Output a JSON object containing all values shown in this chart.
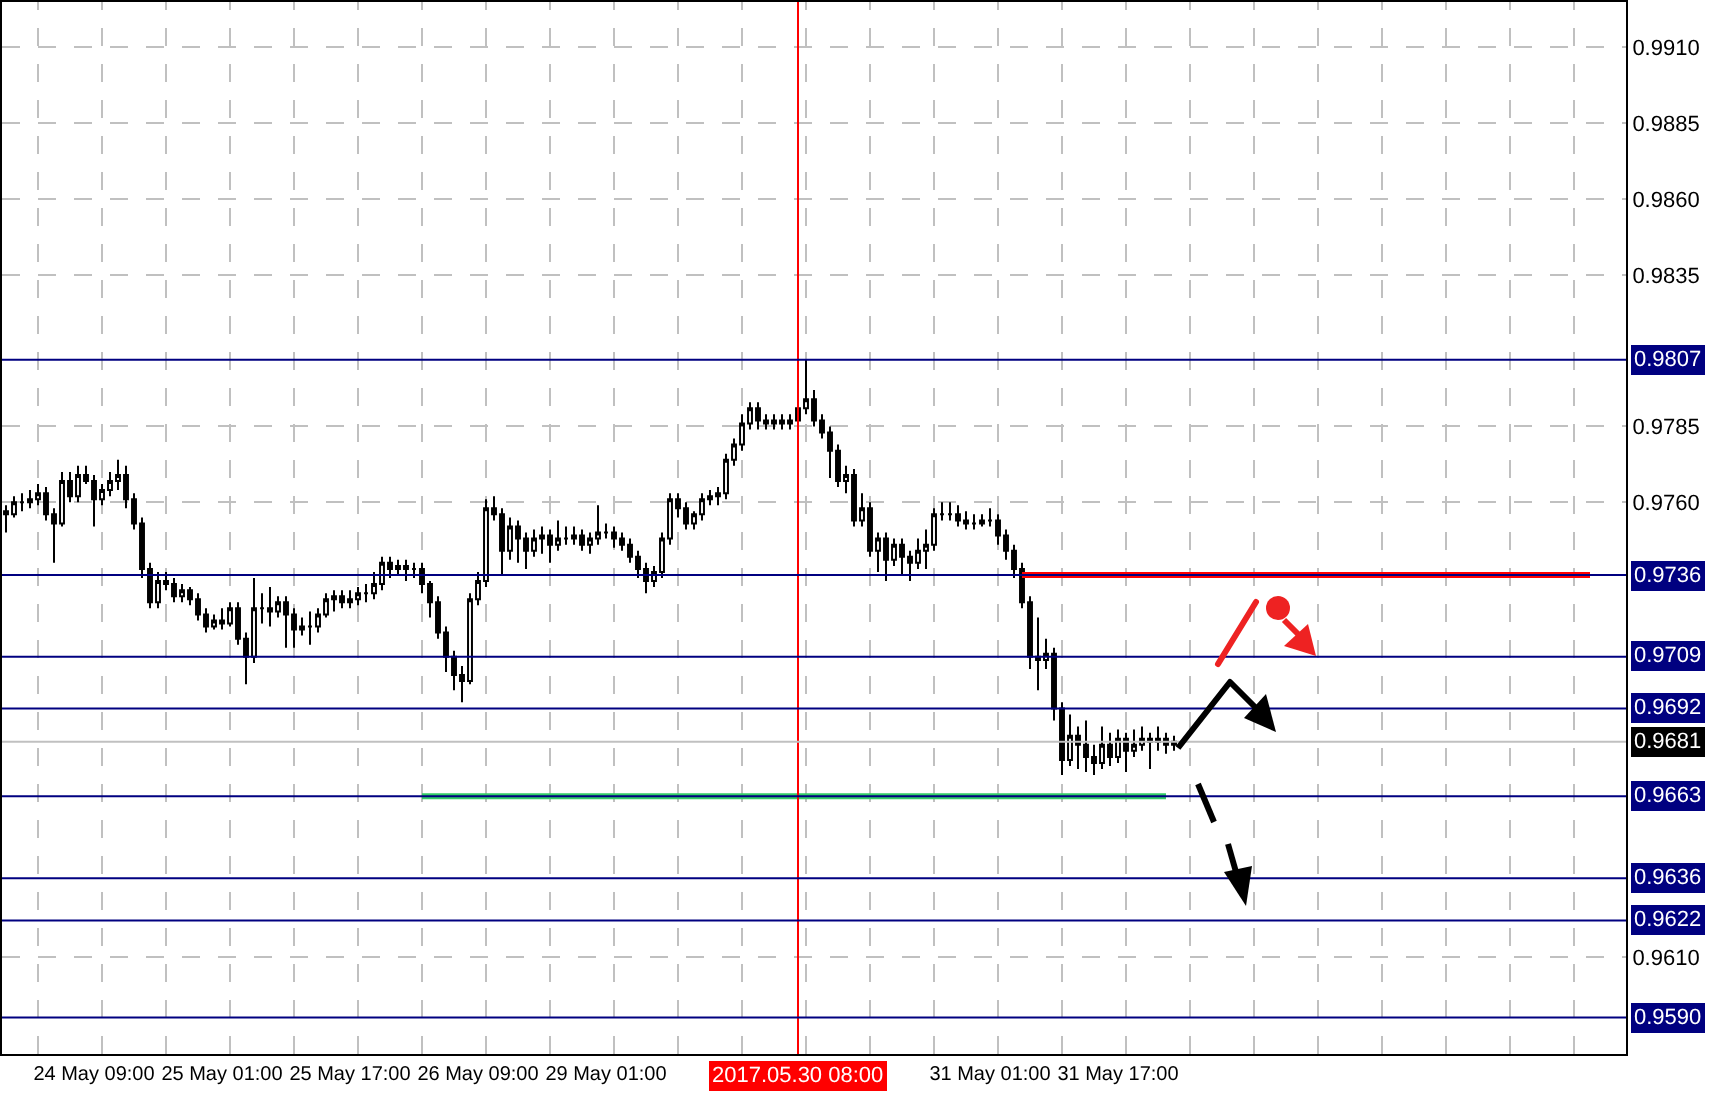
{
  "chart_data": {
    "type": "candlestick",
    "color": "#000000",
    "categories": [
      null,
      null,
      null,
      null,
      null,
      null,
      null,
      null,
      null,
      null,
      null,
      "24 May 09:00",
      null,
      null,
      null,
      null,
      null,
      null,
      null,
      null,
      null,
      null,
      null,
      null,
      null,
      null,
      null,
      "25 May 01:00",
      null,
      null,
      null,
      null,
      null,
      null,
      null,
      null,
      null,
      null,
      null,
      null,
      null,
      null,
      null,
      "25 May 17:00",
      null,
      null,
      null,
      null,
      null,
      null,
      null,
      null,
      null,
      null,
      null,
      null,
      null,
      null,
      null,
      "26 May 09:00",
      null,
      null,
      null,
      null,
      null,
      null,
      null,
      null,
      null,
      null,
      null,
      null,
      null,
      null,
      null,
      "29 May 01:00",
      null,
      null,
      null,
      null,
      null,
      null,
      null,
      null,
      null,
      null,
      null,
      null,
      null,
      null,
      null,
      null,
      null,
      null,
      null,
      null,
      null,
      null,
      null,
      "2017.05.30 08:00",
      null,
      null,
      null,
      null,
      null,
      null,
      null,
      null,
      null,
      null,
      null,
      null,
      null,
      null,
      null,
      null,
      null,
      null,
      null,
      null,
      null,
      null,
      null,
      "31 May 01:00",
      null,
      null,
      null,
      null,
      null,
      null,
      null,
      null,
      null,
      null,
      null,
      null,
      null,
      null,
      null,
      "31 May 17:00",
      null,
      null,
      null,
      null,
      null,
      null,
      null,
      null,
      null,
      null,
      null,
      null,
      null,
      null,
      null,
      null,
      null,
      null,
      null,
      null,
      null,
      null,
      null,
      null,
      null,
      null,
      null,
      null,
      null,
      null,
      null,
      null,
      null,
      null,
      null,
      null,
      null,
      null,
      null,
      null,
      null,
      null,
      null,
      null,
      null,
      null,
      null,
      null,
      null,
      null,
      null,
      null,
      null,
      null,
      null,
      null,
      null,
      null,
      null,
      null,
      null,
      null,
      null
    ],
    "ohlc": [
      [
        0.9757,
        0.9759,
        0.975,
        0.9756
      ],
      [
        0.9756,
        0.9762,
        0.9755,
        0.976
      ],
      [
        0.976,
        0.9763,
        0.9757,
        0.976
      ],
      [
        0.976,
        0.9764,
        0.9758,
        0.9761
      ],
      [
        0.9761,
        0.9766,
        0.9759,
        0.9763
      ],
      [
        0.9763,
        0.9765,
        0.9754,
        0.9756
      ],
      [
        0.9756,
        0.9758,
        0.974,
        0.9753
      ],
      [
        0.9753,
        0.977,
        0.9752,
        0.9767
      ],
      [
        0.9767,
        0.977,
        0.976,
        0.9762
      ],
      [
        0.9762,
        0.9772,
        0.976,
        0.9769
      ],
      [
        0.9769,
        0.9772,
        0.9766,
        0.9767
      ],
      [
        0.9767,
        0.9769,
        0.9752,
        0.9761
      ],
      [
        0.9761,
        0.9766,
        0.9759,
        0.9764
      ],
      [
        0.9764,
        0.977,
        0.9762,
        0.9767
      ],
      [
        0.9767,
        0.9774,
        0.9764,
        0.9769
      ],
      [
        0.9769,
        0.9772,
        0.9758,
        0.9761
      ],
      [
        0.9761,
        0.9763,
        0.9751,
        0.9753
      ],
      [
        0.9753,
        0.9755,
        0.9735,
        0.9738
      ],
      [
        0.9738,
        0.974,
        0.9725,
        0.9727
      ],
      [
        0.9727,
        0.9737,
        0.9725,
        0.9734
      ],
      [
        0.9734,
        0.9737,
        0.9731,
        0.9733
      ],
      [
        0.9733,
        0.9735,
        0.9727,
        0.9729
      ],
      [
        0.9729,
        0.9733,
        0.9727,
        0.9731
      ],
      [
        0.9731,
        0.9732,
        0.9726,
        0.9728
      ],
      [
        0.9728,
        0.973,
        0.9721,
        0.9723
      ],
      [
        0.9723,
        0.9725,
        0.9717,
        0.9719
      ],
      [
        0.9719,
        0.9723,
        0.9718,
        0.9721
      ],
      [
        0.9721,
        0.9725,
        0.9718,
        0.972
      ],
      [
        0.972,
        0.9727,
        0.9719,
        0.9725
      ],
      [
        0.9725,
        0.9727,
        0.9713,
        0.9715
      ],
      [
        0.9715,
        0.9717,
        0.97,
        0.9709
      ],
      [
        0.9709,
        0.9735,
        0.9707,
        0.9725
      ],
      [
        0.9725,
        0.973,
        0.972,
        0.9725
      ],
      [
        0.9725,
        0.9732,
        0.9719,
        0.9724
      ],
      [
        0.9724,
        0.9729,
        0.9722,
        0.9727
      ],
      [
        0.9727,
        0.9729,
        0.9712,
        0.9723
      ],
      [
        0.9723,
        0.9725,
        0.9712,
        0.9718
      ],
      [
        0.9718,
        0.9722,
        0.9716,
        0.9719
      ],
      [
        0.9719,
        0.9724,
        0.9713,
        0.9719
      ],
      [
        0.9719,
        0.9725,
        0.9717,
        0.9723
      ],
      [
        0.9723,
        0.973,
        0.9722,
        0.9728
      ],
      [
        0.9728,
        0.9731,
        0.9724,
        0.9729
      ],
      [
        0.9729,
        0.9731,
        0.9725,
        0.9727
      ],
      [
        0.9727,
        0.9731,
        0.9725,
        0.9728
      ],
      [
        0.9728,
        0.9732,
        0.9726,
        0.973
      ],
      [
        0.973,
        0.9733,
        0.9727,
        0.973
      ],
      [
        0.973,
        0.9737,
        0.9728,
        0.9733
      ],
      [
        0.9733,
        0.9742,
        0.9731,
        0.974
      ],
      [
        0.974,
        0.9742,
        0.9735,
        0.9738
      ],
      [
        0.9738,
        0.9741,
        0.9736,
        0.9739
      ],
      [
        0.9739,
        0.9741,
        0.9734,
        0.9738
      ],
      [
        0.9738,
        0.974,
        0.9735,
        0.9738
      ],
      [
        0.9738,
        0.974,
        0.973,
        0.9733
      ],
      [
        0.9733,
        0.9734,
        0.9722,
        0.9727
      ],
      [
        0.9727,
        0.9729,
        0.9715,
        0.9717
      ],
      [
        0.9717,
        0.9719,
        0.9704,
        0.9709
      ],
      [
        0.9709,
        0.9711,
        0.9698,
        0.9703
      ],
      [
        0.9703,
        0.9706,
        0.9694,
        0.9701
      ],
      [
        0.9701,
        0.973,
        0.97,
        0.9728
      ],
      [
        0.9728,
        0.9737,
        0.9726,
        0.9734
      ],
      [
        0.9734,
        0.9761,
        0.9732,
        0.9758
      ],
      [
        0.9758,
        0.9762,
        0.9754,
        0.9756
      ],
      [
        0.9756,
        0.9758,
        0.9736,
        0.9744
      ],
      [
        0.9744,
        0.9755,
        0.9741,
        0.9752
      ],
      [
        0.9752,
        0.9754,
        0.974,
        0.9748
      ],
      [
        0.9748,
        0.975,
        0.9738,
        0.9744
      ],
      [
        0.9744,
        0.9751,
        0.9742,
        0.9748
      ],
      [
        0.9748,
        0.9752,
        0.9743,
        0.9749
      ],
      [
        0.9749,
        0.9751,
        0.974,
        0.9746
      ],
      [
        0.9746,
        0.9754,
        0.9744,
        0.9748
      ],
      [
        0.9748,
        0.9752,
        0.9746,
        0.9748
      ],
      [
        0.9748,
        0.9752,
        0.9746,
        0.9749
      ],
      [
        0.9749,
        0.9751,
        0.9744,
        0.9746
      ],
      [
        0.9746,
        0.975,
        0.9743,
        0.9748
      ],
      [
        0.9748,
        0.9759,
        0.9746,
        0.975
      ],
      [
        0.975,
        0.9753,
        0.9748,
        0.975
      ],
      [
        0.975,
        0.9752,
        0.9745,
        0.9748
      ],
      [
        0.9748,
        0.975,
        0.9744,
        0.9746
      ],
      [
        0.9746,
        0.9748,
        0.974,
        0.9742
      ],
      [
        0.9742,
        0.9744,
        0.9735,
        0.9738
      ],
      [
        0.9738,
        0.974,
        0.973,
        0.9734
      ],
      [
        0.9734,
        0.9739,
        0.9732,
        0.9737
      ],
      [
        0.9737,
        0.975,
        0.9735,
        0.9748
      ],
      [
        0.9748,
        0.9763,
        0.9746,
        0.9761
      ],
      [
        0.9761,
        0.9763,
        0.9755,
        0.9758
      ],
      [
        0.9758,
        0.976,
        0.9751,
        0.9753
      ],
      [
        0.9753,
        0.9757,
        0.9751,
        0.9756
      ],
      [
        0.9756,
        0.9763,
        0.9754,
        0.9761
      ],
      [
        0.9761,
        0.9764,
        0.9759,
        0.9762
      ],
      [
        0.9762,
        0.9765,
        0.9759,
        0.9763
      ],
      [
        0.9763,
        0.9776,
        0.9761,
        0.9774
      ],
      [
        0.9774,
        0.9781,
        0.9772,
        0.9779
      ],
      [
        0.9779,
        0.9789,
        0.9777,
        0.9786
      ],
      [
        0.9786,
        0.9793,
        0.9784,
        0.9791
      ],
      [
        0.9791,
        0.9793,
        0.9784,
        0.9787
      ],
      [
        0.9787,
        0.9789,
        0.9784,
        0.9786
      ],
      [
        0.9786,
        0.9789,
        0.9784,
        0.9787
      ],
      [
        0.9787,
        0.9789,
        0.9784,
        0.9786
      ],
      [
        0.9786,
        0.9789,
        0.9784,
        0.9787
      ],
      [
        0.9787,
        0.9792,
        0.9785,
        0.9791
      ],
      [
        0.9791,
        0.9807,
        0.9789,
        0.9794
      ],
      [
        0.9794,
        0.9797,
        0.9785,
        0.9787
      ],
      [
        0.9787,
        0.9789,
        0.9781,
        0.9783
      ],
      [
        0.9783,
        0.9785,
        0.9768,
        0.9777
      ],
      [
        0.9777,
        0.9779,
        0.9765,
        0.9767
      ],
      [
        0.9767,
        0.9772,
        0.9763,
        0.9769
      ],
      [
        0.9769,
        0.9771,
        0.9752,
        0.9754
      ],
      [
        0.9754,
        0.9763,
        0.9752,
        0.9758
      ],
      [
        0.9758,
        0.976,
        0.9742,
        0.9744
      ],
      [
        0.9744,
        0.975,
        0.9737,
        0.9748
      ],
      [
        0.9748,
        0.975,
        0.9734,
        0.9741
      ],
      [
        0.9741,
        0.9748,
        0.9739,
        0.9746
      ],
      [
        0.9746,
        0.9748,
        0.9736,
        0.9742
      ],
      [
        0.9742,
        0.9744,
        0.9734,
        0.974
      ],
      [
        0.974,
        0.9748,
        0.9738,
        0.9744
      ],
      [
        0.9744,
        0.9751,
        0.9738,
        0.9746
      ],
      [
        0.9746,
        0.9758,
        0.9744,
        0.9756
      ],
      [
        0.9756,
        0.976,
        0.9754,
        0.9756
      ],
      [
        0.9756,
        0.976,
        0.9754,
        0.9756
      ],
      [
        0.9756,
        0.9759,
        0.9752,
        0.9754
      ],
      [
        0.9754,
        0.9757,
        0.9751,
        0.9753
      ],
      [
        0.9753,
        0.9756,
        0.9751,
        0.9753
      ],
      [
        0.9753,
        0.9756,
        0.9752,
        0.9754
      ],
      [
        0.9754,
        0.9758,
        0.9752,
        0.9754
      ],
      [
        0.9754,
        0.9756,
        0.9746,
        0.9749
      ],
      [
        0.9749,
        0.9751,
        0.9741,
        0.9744
      ],
      [
        0.9744,
        0.9746,
        0.9735,
        0.9738
      ],
      [
        0.9738,
        0.974,
        0.9725,
        0.9727
      ],
      [
        0.9727,
        0.9729,
        0.9705,
        0.9709
      ],
      [
        0.9709,
        0.9722,
        0.9698,
        0.9708
      ],
      [
        0.9708,
        0.9715,
        0.9705,
        0.971
      ],
      [
        0.971,
        0.9712,
        0.9688,
        0.9692
      ],
      [
        0.9692,
        0.9694,
        0.967,
        0.9675
      ],
      [
        0.9675,
        0.969,
        0.9673,
        0.9683
      ],
      [
        0.9683,
        0.9686,
        0.9672,
        0.968
      ],
      [
        0.968,
        0.9688,
        0.9671,
        0.9676
      ],
      [
        0.9676,
        0.968,
        0.967,
        0.9674
      ],
      [
        0.9674,
        0.9686,
        0.9672,
        0.968
      ],
      [
        0.968,
        0.9684,
        0.9673,
        0.9676
      ],
      [
        0.9676,
        0.9685,
        0.9674,
        0.9682
      ],
      [
        0.9682,
        0.9684,
        0.9671,
        0.9678
      ],
      [
        0.9678,
        0.9685,
        0.9676,
        0.968
      ],
      [
        0.968,
        0.9686,
        0.9678,
        0.9682
      ],
      [
        0.9682,
        0.9684,
        0.9672,
        0.9681
      ],
      [
        0.9681,
        0.9686,
        0.9678,
        0.9682
      ],
      [
        0.9682,
        0.9684,
        0.9677,
        0.968
      ],
      [
        0.968,
        0.9683,
        0.9678,
        0.9681
      ],
      null,
      null,
      null,
      null,
      null,
      null,
      null,
      null,
      null,
      null,
      null,
      null,
      null,
      null,
      null,
      null,
      null,
      null,
      null,
      null,
      null,
      null,
      null,
      null,
      null,
      null,
      null,
      null,
      null,
      null,
      null,
      null,
      null,
      null,
      null,
      null,
      null,
      null,
      null,
      null,
      null,
      null,
      null,
      null,
      null,
      null,
      null,
      null,
      null,
      null,
      null,
      null,
      null,
      null,
      null,
      null
    ],
    "series": [
      {
        "type": "line",
        "color": "#ff0000",
        "values": [
          null,
          null,
          null,
          null,
          null,
          null,
          null,
          null,
          null,
          null,
          null,
          null,
          null,
          null,
          null,
          null,
          null,
          null,
          null,
          null,
          null,
          null,
          null,
          null,
          null,
          null,
          null,
          null,
          null,
          null,
          null,
          null,
          null,
          null,
          null,
          null,
          null,
          null,
          null,
          null,
          null,
          null,
          null,
          null,
          null,
          null,
          null,
          null,
          null,
          null,
          null,
          null,
          null,
          null,
          null,
          null,
          null,
          null,
          null,
          null,
          null,
          null,
          null,
          null,
          null,
          null,
          null,
          null,
          null,
          null,
          null,
          null,
          null,
          null,
          null,
          null,
          null,
          null,
          null,
          null,
          null,
          null,
          null,
          null,
          null,
          null,
          null,
          null,
          null,
          null,
          null,
          null,
          null,
          null,
          null,
          null,
          null,
          null,
          null,
          null,
          null,
          null,
          null,
          null,
          null,
          null,
          null,
          null,
          null,
          null,
          null,
          null,
          null,
          null,
          null,
          null,
          null,
          null,
          null,
          null,
          null,
          null,
          null,
          null,
          null,
          null,
          null,
          0.9736,
          0.9736,
          0.9736,
          0.9736,
          0.9736,
          0.9736,
          0.9736,
          0.9736,
          0.9736,
          0.9736,
          0.9736,
          0.9736,
          0.9736,
          0.9736,
          0.9736,
          0.9736,
          0.9736,
          0.9736,
          0.9736,
          0.9736,
          0.9736,
          0.9736,
          0.9736,
          0.9736,
          0.9736,
          0.9736,
          0.9736,
          0.9736,
          0.9736,
          0.9736,
          0.9736,
          0.9736,
          0.9736,
          0.9736,
          0.9736,
          0.9736,
          0.9736,
          0.9736,
          0.9736,
          0.9736,
          0.9736,
          0.9736,
          0.9736,
          0.9736,
          0.9736,
          0.9736,
          0.9736,
          0.9736,
          0.9736,
          0.9736,
          0.9736,
          0.9736,
          0.9736,
          0.9736,
          0.9736,
          0.9736,
          0.9736,
          0.9736,
          0.9736,
          0.9736,
          0.9736,
          0.9736,
          0.9736,
          0.9736,
          0.9736,
          0.9736,
          0.9736,
          0.9736,
          0.9736,
          0.9736,
          0.9736,
          0.9736,
          null,
          null,
          null,
          null
        ]
      },
      {
        "type": "line",
        "color": "#33cc66",
        "values": [
          null,
          null,
          null,
          null,
          null,
          null,
          null,
          null,
          null,
          null,
          null,
          null,
          null,
          null,
          null,
          null,
          null,
          null,
          null,
          null,
          null,
          null,
          null,
          null,
          null,
          null,
          null,
          null,
          null,
          null,
          null,
          null,
          null,
          null,
          null,
          null,
          null,
          null,
          null,
          null,
          null,
          null,
          null,
          null,
          null,
          null,
          null,
          null,
          null,
          null,
          null,
          null,
          0.9663,
          0.9663,
          0.9663,
          0.9663,
          0.9663,
          0.9663,
          0.9663,
          0.9663,
          0.9663,
          0.9663,
          0.9663,
          0.9663,
          0.9663,
          0.9663,
          0.9663,
          0.9663,
          0.9663,
          0.9663,
          0.9663,
          0.9663,
          0.9663,
          0.9663,
          0.9663,
          0.9663,
          0.9663,
          0.9663,
          0.9663,
          0.9663,
          0.9663,
          0.9663,
          0.9663,
          0.9663,
          0.9663,
          0.9663,
          0.9663,
          0.9663,
          0.9663,
          0.9663,
          0.9663,
          0.9663,
          0.9663,
          0.9663,
          0.9663,
          0.9663,
          0.9663,
          0.9663,
          0.9663,
          0.9663,
          0.9663,
          0.9663,
          0.9663,
          0.9663,
          0.9663,
          0.9663,
          0.9663,
          0.9663,
          0.9663,
          0.9663,
          0.9663,
          0.9663,
          0.9663,
          0.9663,
          0.9663,
          0.9663,
          0.9663,
          0.9663,
          0.9663,
          0.9663,
          0.9663,
          0.9663,
          0.9663,
          0.9663,
          0.9663,
          0.9663,
          0.9663,
          0.9663,
          0.9663,
          0.9663,
          0.9663,
          0.9663,
          0.9663,
          0.9663,
          0.9663,
          0.9663,
          0.9663,
          0.9663,
          0.9663,
          0.9663,
          0.9663,
          0.9663,
          0.9663,
          0.9663,
          0.9663,
          0.9663,
          null,
          null,
          null,
          null,
          null,
          null,
          null,
          null,
          null,
          null,
          null,
          null,
          null,
          null,
          null,
          null,
          null,
          null,
          null,
          null,
          null,
          null,
          null,
          null,
          null,
          null,
          null,
          null,
          null,
          null,
          null,
          null,
          null,
          null,
          null,
          null,
          null,
          null,
          null,
          null,
          null,
          null,
          null,
          null,
          null,
          null,
          null,
          null,
          null,
          null,
          null,
          null,
          null,
          null,
          null,
          null,
          null
        ]
      }
    ],
    "ylim": [
      0.9578,
      0.9925
    ],
    "yticks": [
      {
        "value": 0.991,
        "label": "0.9910"
      },
      0.9885,
      {
        "value": 0.986,
        "label": "0.9860"
      },
      0.9835,
      0.9785,
      {
        "value": 0.976,
        "label": "0.9760"
      },
      {
        "value": 0.961,
        "label": "0.9610"
      }
    ],
    "grid": true,
    "ref_lines": [
      {
        "axis": "x",
        "value": "2017.05.30 08:00",
        "color": "#ff0000"
      },
      {
        "axis": "y",
        "value": 0.9807,
        "label": "0.9807",
        "color": "#000080"
      },
      {
        "axis": "y",
        "value": 0.9736,
        "label": "0.9736",
        "color": "#000080"
      },
      {
        "axis": "y",
        "value": 0.9709,
        "label": "0.9709",
        "color": "#000080"
      },
      {
        "axis": "y",
        "value": 0.9692,
        "label": "0.9692",
        "color": "#000080"
      },
      {
        "axis": "y",
        "value": 0.9681,
        "label": "0.9681",
        "color": "#c0c0c0"
      },
      {
        "axis": "y",
        "value": 0.9663,
        "label": "0.9663",
        "color": "#000080"
      },
      {
        "axis": "y",
        "value": 0.9636,
        "label": "0.9636",
        "color": "#000080"
      },
      {
        "axis": "y",
        "value": 0.9622,
        "label": "0.9622",
        "color": "#000080"
      },
      {
        "axis": "y",
        "value": 0.959,
        "label": "0.9590",
        "color": "#000080"
      }
    ]
  }
}
